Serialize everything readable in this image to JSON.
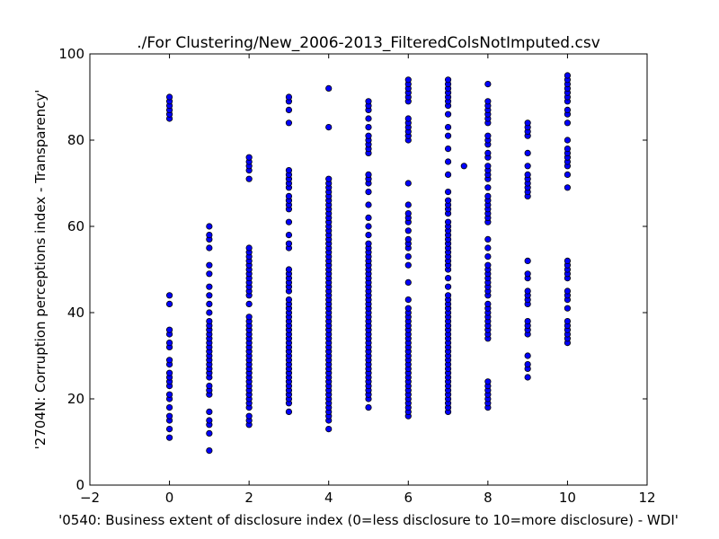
{
  "chart_data": {
    "type": "scatter",
    "title": "./For Clustering/New_2006-2013_FilteredColsNotImputed.csv",
    "xlabel": "'0540: Business extent of disclosure index  (0=less disclosure to 10=more disclosure) - WDI'",
    "ylabel": "'2704N: Corruption perceptions index - Transparency'",
    "xlim": [
      -2,
      12
    ],
    "ylim": [
      0,
      100
    ],
    "xticks": [
      "−2",
      "0",
      "2",
      "4",
      "6",
      "8",
      "10",
      "12"
    ],
    "yticks": [
      "0",
      "20",
      "40",
      "60",
      "80",
      "100"
    ],
    "grid": false,
    "legend": "none",
    "marker_color": "#0000ff",
    "marker_edge": "#000000",
    "columns": [
      {
        "x": 0,
        "y": [
          11,
          13,
          15,
          16,
          18,
          20,
          21,
          23,
          24,
          25,
          26,
          28,
          29,
          32,
          33,
          35,
          36,
          42,
          44,
          85,
          86,
          87,
          88,
          89,
          90
        ]
      },
      {
        "x": 1,
        "y": [
          8,
          12,
          14,
          15,
          17,
          21,
          22,
          23,
          25,
          26,
          27,
          28,
          29,
          30,
          31,
          32,
          33,
          34,
          35,
          36,
          37,
          38,
          40,
          42,
          44,
          46,
          49,
          51,
          55,
          57,
          58,
          60
        ]
      },
      {
        "x": 2,
        "y": [
          14,
          15,
          16,
          18,
          19,
          20,
          21,
          22,
          23,
          24,
          25,
          26,
          27,
          28,
          29,
          30,
          31,
          32,
          33,
          34,
          35,
          36,
          37,
          38,
          39,
          42,
          44,
          45,
          46,
          47,
          48,
          49,
          50,
          51,
          52,
          53,
          54,
          55,
          71,
          73,
          74,
          75,
          76
        ]
      },
      {
        "x": 3,
        "y": [
          17,
          19,
          20,
          21,
          22,
          23,
          24,
          25,
          26,
          27,
          28,
          29,
          30,
          31,
          32,
          33,
          34,
          35,
          36,
          37,
          38,
          39,
          40,
          41,
          42,
          43,
          45,
          46,
          47,
          48,
          49,
          50,
          55,
          56,
          58,
          61,
          64,
          65,
          66,
          67,
          69,
          70,
          71,
          72,
          73,
          84,
          87,
          89,
          90
        ]
      },
      {
        "x": 4,
        "y": [
          13,
          15,
          16,
          17,
          18,
          19,
          20,
          21,
          22,
          23,
          24,
          25,
          26,
          27,
          28,
          29,
          30,
          31,
          32,
          33,
          34,
          35,
          36,
          37,
          38,
          39,
          40,
          41,
          42,
          43,
          44,
          45,
          46,
          47,
          48,
          49,
          50,
          51,
          52,
          53,
          54,
          55,
          56,
          57,
          58,
          59,
          60,
          61,
          62,
          63,
          64,
          65,
          66,
          67,
          68,
          69,
          70,
          71,
          83,
          92
        ]
      },
      {
        "x": 5,
        "y": [
          18,
          20,
          21,
          22,
          23,
          24,
          25,
          26,
          27,
          28,
          29,
          30,
          31,
          32,
          33,
          34,
          35,
          36,
          37,
          38,
          39,
          40,
          41,
          42,
          43,
          44,
          45,
          46,
          47,
          48,
          49,
          50,
          51,
          52,
          53,
          54,
          55,
          56,
          58,
          60,
          62,
          65,
          68,
          70,
          71,
          72,
          77,
          78,
          79,
          80,
          81,
          83,
          85,
          87,
          88,
          89
        ]
      },
      {
        "x": 6,
        "y": [
          16,
          17,
          18,
          19,
          20,
          21,
          22,
          23,
          24,
          25,
          26,
          27,
          28,
          29,
          30,
          31,
          32,
          33,
          34,
          35,
          36,
          37,
          38,
          39,
          40,
          41,
          43,
          47,
          51,
          53,
          55,
          56,
          57,
          59,
          61,
          62,
          63,
          65,
          70,
          80,
          81,
          82,
          83,
          84,
          85,
          89,
          90,
          91,
          92,
          93,
          94
        ]
      },
      {
        "x": 7,
        "y": [
          17,
          18,
          19,
          20,
          21,
          22,
          23,
          24,
          25,
          26,
          27,
          28,
          29,
          30,
          31,
          32,
          33,
          34,
          35,
          36,
          37,
          38,
          39,
          40,
          41,
          42,
          43,
          44,
          46,
          48,
          50,
          51,
          52,
          53,
          54,
          55,
          56,
          57,
          58,
          59,
          60,
          61,
          63,
          64,
          65,
          66,
          68,
          72,
          75,
          78,
          81,
          83,
          86,
          88,
          89,
          90,
          91,
          92,
          93,
          94
        ]
      },
      {
        "x": 7.4,
        "y": [
          74
        ]
      },
      {
        "x": 8,
        "y": [
          18,
          19,
          20,
          21,
          22,
          23,
          24,
          34,
          35,
          36,
          37,
          38,
          39,
          40,
          41,
          42,
          44,
          45,
          46,
          47,
          48,
          49,
          50,
          51,
          53,
          55,
          57,
          61,
          62,
          63,
          64,
          65,
          66,
          67,
          69,
          71,
          72,
          73,
          74,
          76,
          77,
          79,
          80,
          81,
          84,
          85,
          86,
          87,
          88,
          89,
          93
        ]
      },
      {
        "x": 9,
        "y": [
          25,
          27,
          28,
          30,
          35,
          36,
          37,
          38,
          42,
          43,
          44,
          45,
          48,
          49,
          52,
          67,
          68,
          69,
          70,
          71,
          72,
          74,
          77,
          81,
          82,
          83,
          84
        ]
      },
      {
        "x": 10,
        "y": [
          33,
          34,
          35,
          36,
          37,
          38,
          41,
          43,
          44,
          45,
          48,
          49,
          50,
          51,
          52,
          69,
          72,
          74,
          75,
          76,
          77,
          78,
          80,
          84,
          86,
          87,
          89,
          90,
          91,
          92,
          93,
          94,
          95
        ]
      }
    ]
  }
}
